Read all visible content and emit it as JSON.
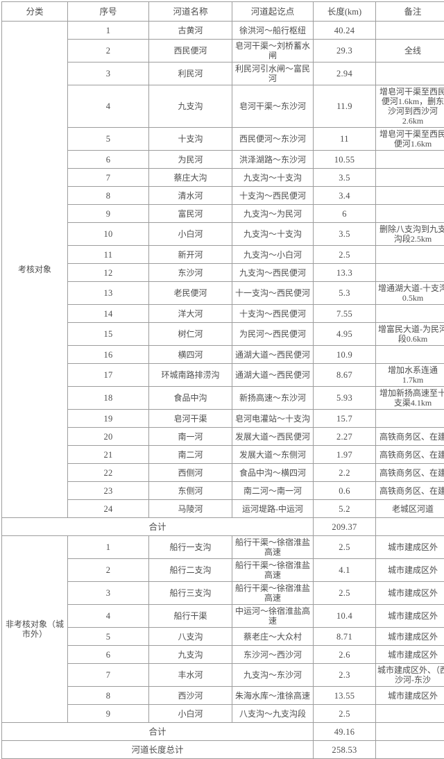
{
  "colors": {
    "border": "#9c9c9c",
    "text": "#4d4d4d",
    "background": "#ffffff"
  },
  "table": {
    "headers": [
      "分类",
      "序号",
      "河道名称",
      "河道起讫点",
      "长度(km)",
      "备注"
    ],
    "sections": [
      {
        "category": "考核对象",
        "rows": [
          {
            "no": "1",
            "name": "古黄河",
            "extent": "徐洪河～船行枢纽",
            "length": "40.24",
            "remark": ""
          },
          {
            "no": "2",
            "name": "西民便河",
            "extent": "皂河干渠～刘桥蓄水闸",
            "length": "29.3",
            "remark": "全线"
          },
          {
            "no": "3",
            "name": "利民河",
            "extent": "利民河引水闸～富民河",
            "length": "2.94",
            "remark": ""
          },
          {
            "no": "4",
            "name": "九支沟",
            "extent": "皂河干渠～东沙河",
            "length": "11.9",
            "remark": "增皂河干渠至西民便河1.6km，删东沙河到西沙河2.6km"
          },
          {
            "no": "5",
            "name": "十支沟",
            "extent": "西民便河～东沙河",
            "length": "11",
            "remark": "增皂河干渠至西民便河1.6km"
          },
          {
            "no": "6",
            "name": "为民河",
            "extent": "洪泽湖路～东沙河",
            "length": "10.55",
            "remark": ""
          },
          {
            "no": "7",
            "name": "蔡庄大沟",
            "extent": "九支沟～十支沟",
            "length": "3.5",
            "remark": ""
          },
          {
            "no": "8",
            "name": "清水河",
            "extent": "十支沟～西民便河",
            "length": "3.4",
            "remark": ""
          },
          {
            "no": "9",
            "name": "富民河",
            "extent": "九支沟～为民河",
            "length": "6",
            "remark": ""
          },
          {
            "no": "10",
            "name": "小白河",
            "extent": "九支沟～十支沟",
            "length": "3.5",
            "remark": "删除八支沟到九支沟段2.5km"
          },
          {
            "no": "11",
            "name": "新开河",
            "extent": "九支沟～小白河",
            "length": "2.5",
            "remark": ""
          },
          {
            "no": "12",
            "name": "东沙河",
            "extent": "九支沟～西民便河",
            "length": "13.3",
            "remark": ""
          },
          {
            "no": "13",
            "name": "老民便河",
            "extent": "十一支沟～西民便河",
            "length": "5.3",
            "remark": "增通湖大道-十支沟0.5km"
          },
          {
            "no": "14",
            "name": "洋大河",
            "extent": "十支沟～西民便河",
            "length": "7.55",
            "remark": ""
          },
          {
            "no": "15",
            "name": "树仁河",
            "extent": "为民河～西民便河",
            "length": "4.95",
            "remark": "增富民大道-为民河段0.6km"
          },
          {
            "no": "16",
            "name": "横四河",
            "extent": "通湖大道～西民便河",
            "length": "10.9",
            "remark": ""
          },
          {
            "no": "17",
            "name": "环城南路排涝沟",
            "extent": "通湖大道～西民便河",
            "length": "8.67",
            "remark": "增加水系连通1.7km"
          },
          {
            "no": "18",
            "name": "食品中沟",
            "extent": "新扬高速～东沙河",
            "length": "5.93",
            "remark": "增加新扬高速至十支渠4.1km"
          },
          {
            "no": "19",
            "name": "皂河干渠",
            "extent": "皂河电灌站～十支沟",
            "length": "15.7",
            "remark": ""
          },
          {
            "no": "20",
            "name": "南一河",
            "extent": "发展大道～西民便河",
            "length": "2.27",
            "remark": "高铁商务区、在建"
          },
          {
            "no": "21",
            "name": "南二河",
            "extent": "发展大道～东侧河",
            "length": "1.97",
            "remark": "高铁商务区、在建"
          },
          {
            "no": "22",
            "name": "西侧河",
            "extent": "食品中沟～横四河",
            "length": "2.2",
            "remark": "高铁商务区、在建"
          },
          {
            "no": "23",
            "name": "东侧河",
            "extent": "南二河～南一河",
            "length": "0.6",
            "remark": "高铁商务区、在建"
          },
          {
            "no": "24",
            "name": "马陵河",
            "extent": "运河堤路-中运河",
            "length": "5.2",
            "remark": "老城区河道"
          }
        ],
        "subtotal_label": "合计",
        "subtotal_value": "209.37"
      },
      {
        "category": "非考核对象（城市外）",
        "rows": [
          {
            "no": "1",
            "name": "船行一支沟",
            "extent": "船行干渠～徐宿淮盐高速",
            "length": "2.5",
            "remark": "城市建成区外"
          },
          {
            "no": "2",
            "name": "船行二支沟",
            "extent": "船行干渠～徐宿淮盐高速",
            "length": "4.1",
            "remark": "城市建成区外"
          },
          {
            "no": "3",
            "name": "船行三支沟",
            "extent": "船行干渠～徐宿淮盐高速",
            "length": "2.5",
            "remark": "城市建成区外"
          },
          {
            "no": "4",
            "name": "船行干渠",
            "extent": "中运河～徐宿淮盐高速",
            "length": "10.4",
            "remark": "城市建成区外"
          },
          {
            "no": "5",
            "name": "八支沟",
            "extent": "蔡老庄～大众村",
            "length": "8.71",
            "remark": "城市建成区外"
          },
          {
            "no": "6",
            "name": "九支沟",
            "extent": "东沙河～西沙河",
            "length": "2.6",
            "remark": "城市建成区外"
          },
          {
            "no": "7",
            "name": "丰水河",
            "extent": "九支沟～东沙河",
            "length": "2.3",
            "remark": "城市建成区外、（西沙河-东沙"
          },
          {
            "no": "8",
            "name": "西沙河",
            "extent": "朱海水库～淮徐高速",
            "length": "13.55",
            "remark": "城市建成区外"
          },
          {
            "no": "9",
            "name": "小白河",
            "extent": "八支沟～九支沟段",
            "length": "2.5",
            "remark": ""
          }
        ],
        "subtotal_label": "合计",
        "subtotal_value": "49.16"
      }
    ],
    "total": {
      "label": "河道长度总计",
      "value": "258.53"
    }
  }
}
